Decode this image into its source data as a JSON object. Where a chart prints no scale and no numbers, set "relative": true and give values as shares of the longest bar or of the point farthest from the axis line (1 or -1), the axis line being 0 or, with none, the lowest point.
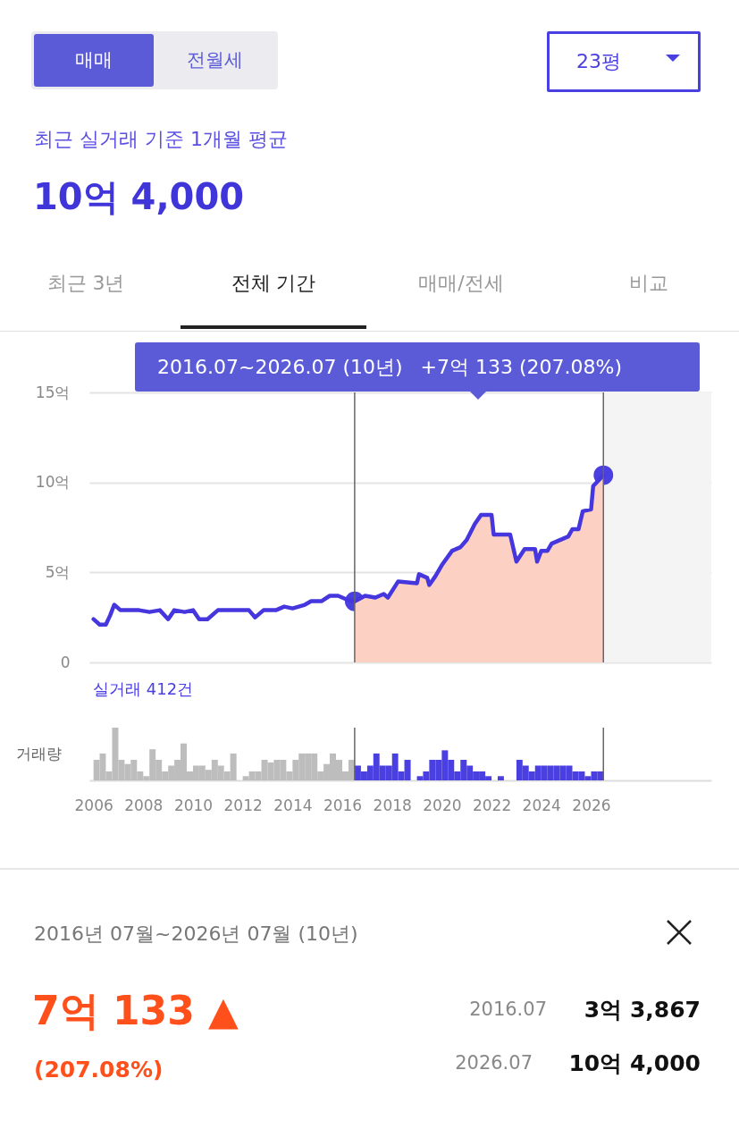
{
  "chart_data": [
    {
      "type": "other",
      "annotations": [
        "매매",
        "전월세",
        "23평",
        "최근 실거래 기준 1개월 평균",
        "10억 4,000",
        "최근 3년",
        "전체 기간",
        "매매/전세",
        "비교"
      ]
    },
    {
      "type": "line",
      "annotations": [
        "2016.07~2026.07 (10년)",
        "+7억 133 (207.08%)",
        "실거래 412건"
      ],
      "xlim": [
        "2005-11",
        "2030-11"
      ],
      "ylim": [
        0,
        15
      ],
      "yticks": [
        {
          "value": 0,
          "label": "0"
        },
        {
          "value": 5,
          "label": "5억"
        },
        {
          "value": 10,
          "label": "10억"
        },
        {
          "value": 15,
          "label": "15억"
        }
      ],
      "grid": "y",
      "tick_labels": "y",
      "ref_lines": [
        {
          "axis": "x",
          "value": "2016-07",
          "label": null
        },
        {
          "axis": "x",
          "value": "2026-07",
          "label": null
        }
      ],
      "bands": [
        {
          "axis": "x",
          "from": "2026-07",
          "to": "2030-11",
          "label": null,
          "color": "#f4f4f4"
        }
      ],
      "series": [
        {
          "type": "area",
          "color": "#fdd0c4",
          "x": [
            "2016-07",
            "2016-12",
            "2017-05",
            "2017-09",
            "2017-11",
            "2018-04",
            "2019-01",
            "2019-02",
            "2019-06",
            "2019-07",
            "2019-10",
            "2020-01",
            "2020-06",
            "2020-10",
            "2021-01",
            "2021-05",
            "2021-08",
            "2022-01",
            "2022-02",
            "2022-10",
            "2023-01",
            "2023-05",
            "2023-10",
            "2023-11",
            "2024-01",
            "2024-04",
            "2024-06",
            "2024-10",
            "2025-02",
            "2025-04",
            "2025-07",
            "2025-09",
            "2026-01",
            "2026-02",
            "2026-07"
          ],
          "values": [
            3.3867,
            3.7,
            3.6,
            3.8,
            3.6,
            4.5,
            4.4,
            4.9,
            4.7,
            4.3,
            4.8,
            5.4,
            6.2,
            6.4,
            6.8,
            7.7,
            8.2,
            8.2,
            7.1,
            7.1,
            5.6,
            6.3,
            6.3,
            5.6,
            6.2,
            6.2,
            6.6,
            6.8,
            7.0,
            7.4,
            7.4,
            8.4,
            8.5,
            9.8,
            10.4
          ]
        },
        {
          "type": "line",
          "color": "#4536dd",
          "x": [
            "2006-01",
            "2006-04",
            "2006-07",
            "2006-09",
            "2006-11",
            "2007-02",
            "2007-08",
            "2007-11",
            "2008-04",
            "2008-09",
            "2009-01",
            "2009-04",
            "2009-09",
            "2010-01",
            "2010-04",
            "2010-08",
            "2011-01",
            "2011-07",
            "2012-04",
            "2012-07",
            "2012-11",
            "2013-05",
            "2013-09",
            "2014-01",
            "2014-07",
            "2014-10",
            "2015-03",
            "2015-07",
            "2015-11",
            "2016-03",
            "2016-07",
            "2016-12",
            "2017-05",
            "2017-09",
            "2017-11",
            "2018-04",
            "2019-01",
            "2019-02",
            "2019-06",
            "2019-07",
            "2019-10",
            "2020-01",
            "2020-06",
            "2020-10",
            "2021-01",
            "2021-05",
            "2021-08",
            "2022-01",
            "2022-02",
            "2022-10",
            "2023-01",
            "2023-05",
            "2023-10",
            "2023-11",
            "2024-01",
            "2024-04",
            "2024-06",
            "2024-10",
            "2025-02",
            "2025-04",
            "2025-07",
            "2025-09",
            "2026-01",
            "2026-02",
            "2026-07"
          ],
          "values": [
            2.4,
            2.1,
            2.1,
            2.6,
            3.2,
            2.9,
            2.9,
            2.9,
            2.8,
            2.9,
            2.4,
            2.9,
            2.8,
            2.9,
            2.4,
            2.4,
            2.9,
            2.9,
            2.9,
            2.5,
            2.9,
            2.9,
            3.1,
            3.0,
            3.2,
            3.4,
            3.4,
            3.7,
            3.7,
            3.5,
            3.3867,
            3.7,
            3.6,
            3.8,
            3.6,
            4.5,
            4.4,
            4.9,
            4.7,
            4.3,
            4.8,
            5.4,
            6.2,
            6.4,
            6.8,
            7.7,
            8.2,
            8.2,
            7.1,
            7.1,
            5.6,
            6.3,
            6.3,
            5.6,
            6.2,
            6.2,
            6.6,
            6.8,
            7.0,
            7.4,
            7.4,
            8.4,
            8.5,
            9.8,
            10.4
          ]
        },
        {
          "type": "scatter",
          "color": "#4a3fe0",
          "marker": "circle",
          "x": [
            "2016-07",
            "2026-07"
          ],
          "values": [
            3.3867,
            10.4
          ]
        }
      ]
    },
    {
      "type": "bar",
      "relative": true,
      "ylabel": "거래량",
      "xlim": [
        "2005-11",
        "2030-11"
      ],
      "xticks": [
        "2006",
        "2008",
        "2010",
        "2012",
        "2014",
        "2016",
        "2018",
        "2020",
        "2022",
        "2024",
        "2026"
      ],
      "grid": false,
      "ref_lines": [
        {
          "axis": "x",
          "value": "2016-07",
          "label": null
        },
        {
          "axis": "x",
          "value": "2026-07",
          "label": null
        }
      ],
      "x": [
        "2006-01",
        "2006-04",
        "2006-07",
        "2006-10",
        "2007-01",
        "2007-04",
        "2007-07",
        "2007-10",
        "2008-01",
        "2008-04",
        "2008-07",
        "2008-10",
        "2009-01",
        "2009-04",
        "2009-07",
        "2009-10",
        "2010-01",
        "2010-04",
        "2010-07",
        "2010-10",
        "2011-01",
        "2011-04",
        "2011-07",
        "2011-10",
        "2012-01",
        "2012-04",
        "2012-07",
        "2012-10",
        "2013-01",
        "2013-04",
        "2013-07",
        "2013-10",
        "2014-01",
        "2014-04",
        "2014-07",
        "2014-10",
        "2015-01",
        "2015-04",
        "2015-07",
        "2015-10",
        "2016-01",
        "2016-04",
        "2016-07",
        "2016-10",
        "2017-01",
        "2017-04",
        "2017-07",
        "2017-10",
        "2018-01",
        "2018-04",
        "2018-07",
        "2018-10",
        "2019-01",
        "2019-04",
        "2019-07",
        "2019-10",
        "2020-01",
        "2020-04",
        "2020-07",
        "2020-10",
        "2021-01",
        "2021-04",
        "2021-07",
        "2021-10",
        "2022-01",
        "2022-04",
        "2022-07",
        "2022-10",
        "2023-01",
        "2023-04",
        "2023-07",
        "2023-10",
        "2024-01",
        "2024-04",
        "2024-07",
        "2024-10",
        "2025-01",
        "2025-04",
        "2025-07",
        "2025-10",
        "2026-01",
        "2026-04"
      ],
      "values": [
        0.39,
        0.51,
        0.17,
        1,
        0.39,
        0.31,
        0.39,
        0.17,
        0.08,
        0.59,
        0.39,
        0.17,
        0.28,
        0.39,
        0.7,
        0.17,
        0.28,
        0.28,
        0.2,
        0.39,
        0.28,
        0.17,
        0.51,
        null,
        0.08,
        0.17,
        0.17,
        0.39,
        0.34,
        0.39,
        0.39,
        0.17,
        0.39,
        0.51,
        0.51,
        0.51,
        0.17,
        0.31,
        0.51,
        0.39,
        0.17,
        0.39,
        0.28,
        0.17,
        0.28,
        0.51,
        0.28,
        0.28,
        0.51,
        0.17,
        0.39,
        null,
        0.08,
        0.17,
        0.39,
        0.39,
        0.57,
        0.39,
        0.17,
        0.39,
        0.28,
        0.17,
        0.17,
        0.08,
        null,
        0.08,
        null,
        null,
        0.39,
        0.28,
        0.17,
        0.28,
        0.28,
        0.28,
        0.28,
        0.28,
        0.28,
        0.17,
        0.17,
        0.08,
        0.17,
        0.17
      ],
      "colors": [
        "#bdbdbd",
        "#bdbdbd",
        "#bdbdbd",
        "#bdbdbd",
        "#bdbdbd",
        "#bdbdbd",
        "#bdbdbd",
        "#bdbdbd",
        "#bdbdbd",
        "#bdbdbd",
        "#bdbdbd",
        "#bdbdbd",
        "#bdbdbd",
        "#bdbdbd",
        "#bdbdbd",
        "#bdbdbd",
        "#bdbdbd",
        "#bdbdbd",
        "#bdbdbd",
        "#bdbdbd",
        "#bdbdbd",
        "#bdbdbd",
        "#bdbdbd",
        "#bdbdbd",
        "#bdbdbd",
        "#bdbdbd",
        "#bdbdbd",
        "#bdbdbd",
        "#bdbdbd",
        "#bdbdbd",
        "#bdbdbd",
        "#bdbdbd",
        "#bdbdbd",
        "#bdbdbd",
        "#bdbdbd",
        "#bdbdbd",
        "#bdbdbd",
        "#bdbdbd",
        "#bdbdbd",
        "#bdbdbd",
        "#bdbdbd",
        "#bdbdbd",
        "#4a3fe0",
        "#4a3fe0",
        "#4a3fe0",
        "#4a3fe0",
        "#4a3fe0",
        "#4a3fe0",
        "#4a3fe0",
        "#4a3fe0",
        "#4a3fe0",
        "#4a3fe0",
        "#4a3fe0",
        "#4a3fe0",
        "#4a3fe0",
        "#4a3fe0",
        "#4a3fe0",
        "#4a3fe0",
        "#4a3fe0",
        "#4a3fe0",
        "#4a3fe0",
        "#4a3fe0",
        "#4a3fe0",
        "#4a3fe0",
        "#4a3fe0",
        "#4a3fe0",
        "#4a3fe0",
        "#4a3fe0",
        "#4a3fe0",
        "#4a3fe0",
        "#4a3fe0",
        "#4a3fe0",
        "#4a3fe0",
        "#4a3fe0",
        "#4a3fe0",
        "#4a3fe0",
        "#4a3fe0",
        "#4a3fe0",
        "#4a3fe0",
        "#4a3fe0",
        "#4a3fe0",
        "#4a3fe0"
      ]
    },
    {
      "type": "other",
      "annotations": [
        "2016년 07월~2026년 07월 (10년)",
        "7억 133 ▲",
        "(207.08%)",
        "2016.07",
        "3억 3,867",
        "2026.07",
        "10억 4,000"
      ]
    }
  ]
}
